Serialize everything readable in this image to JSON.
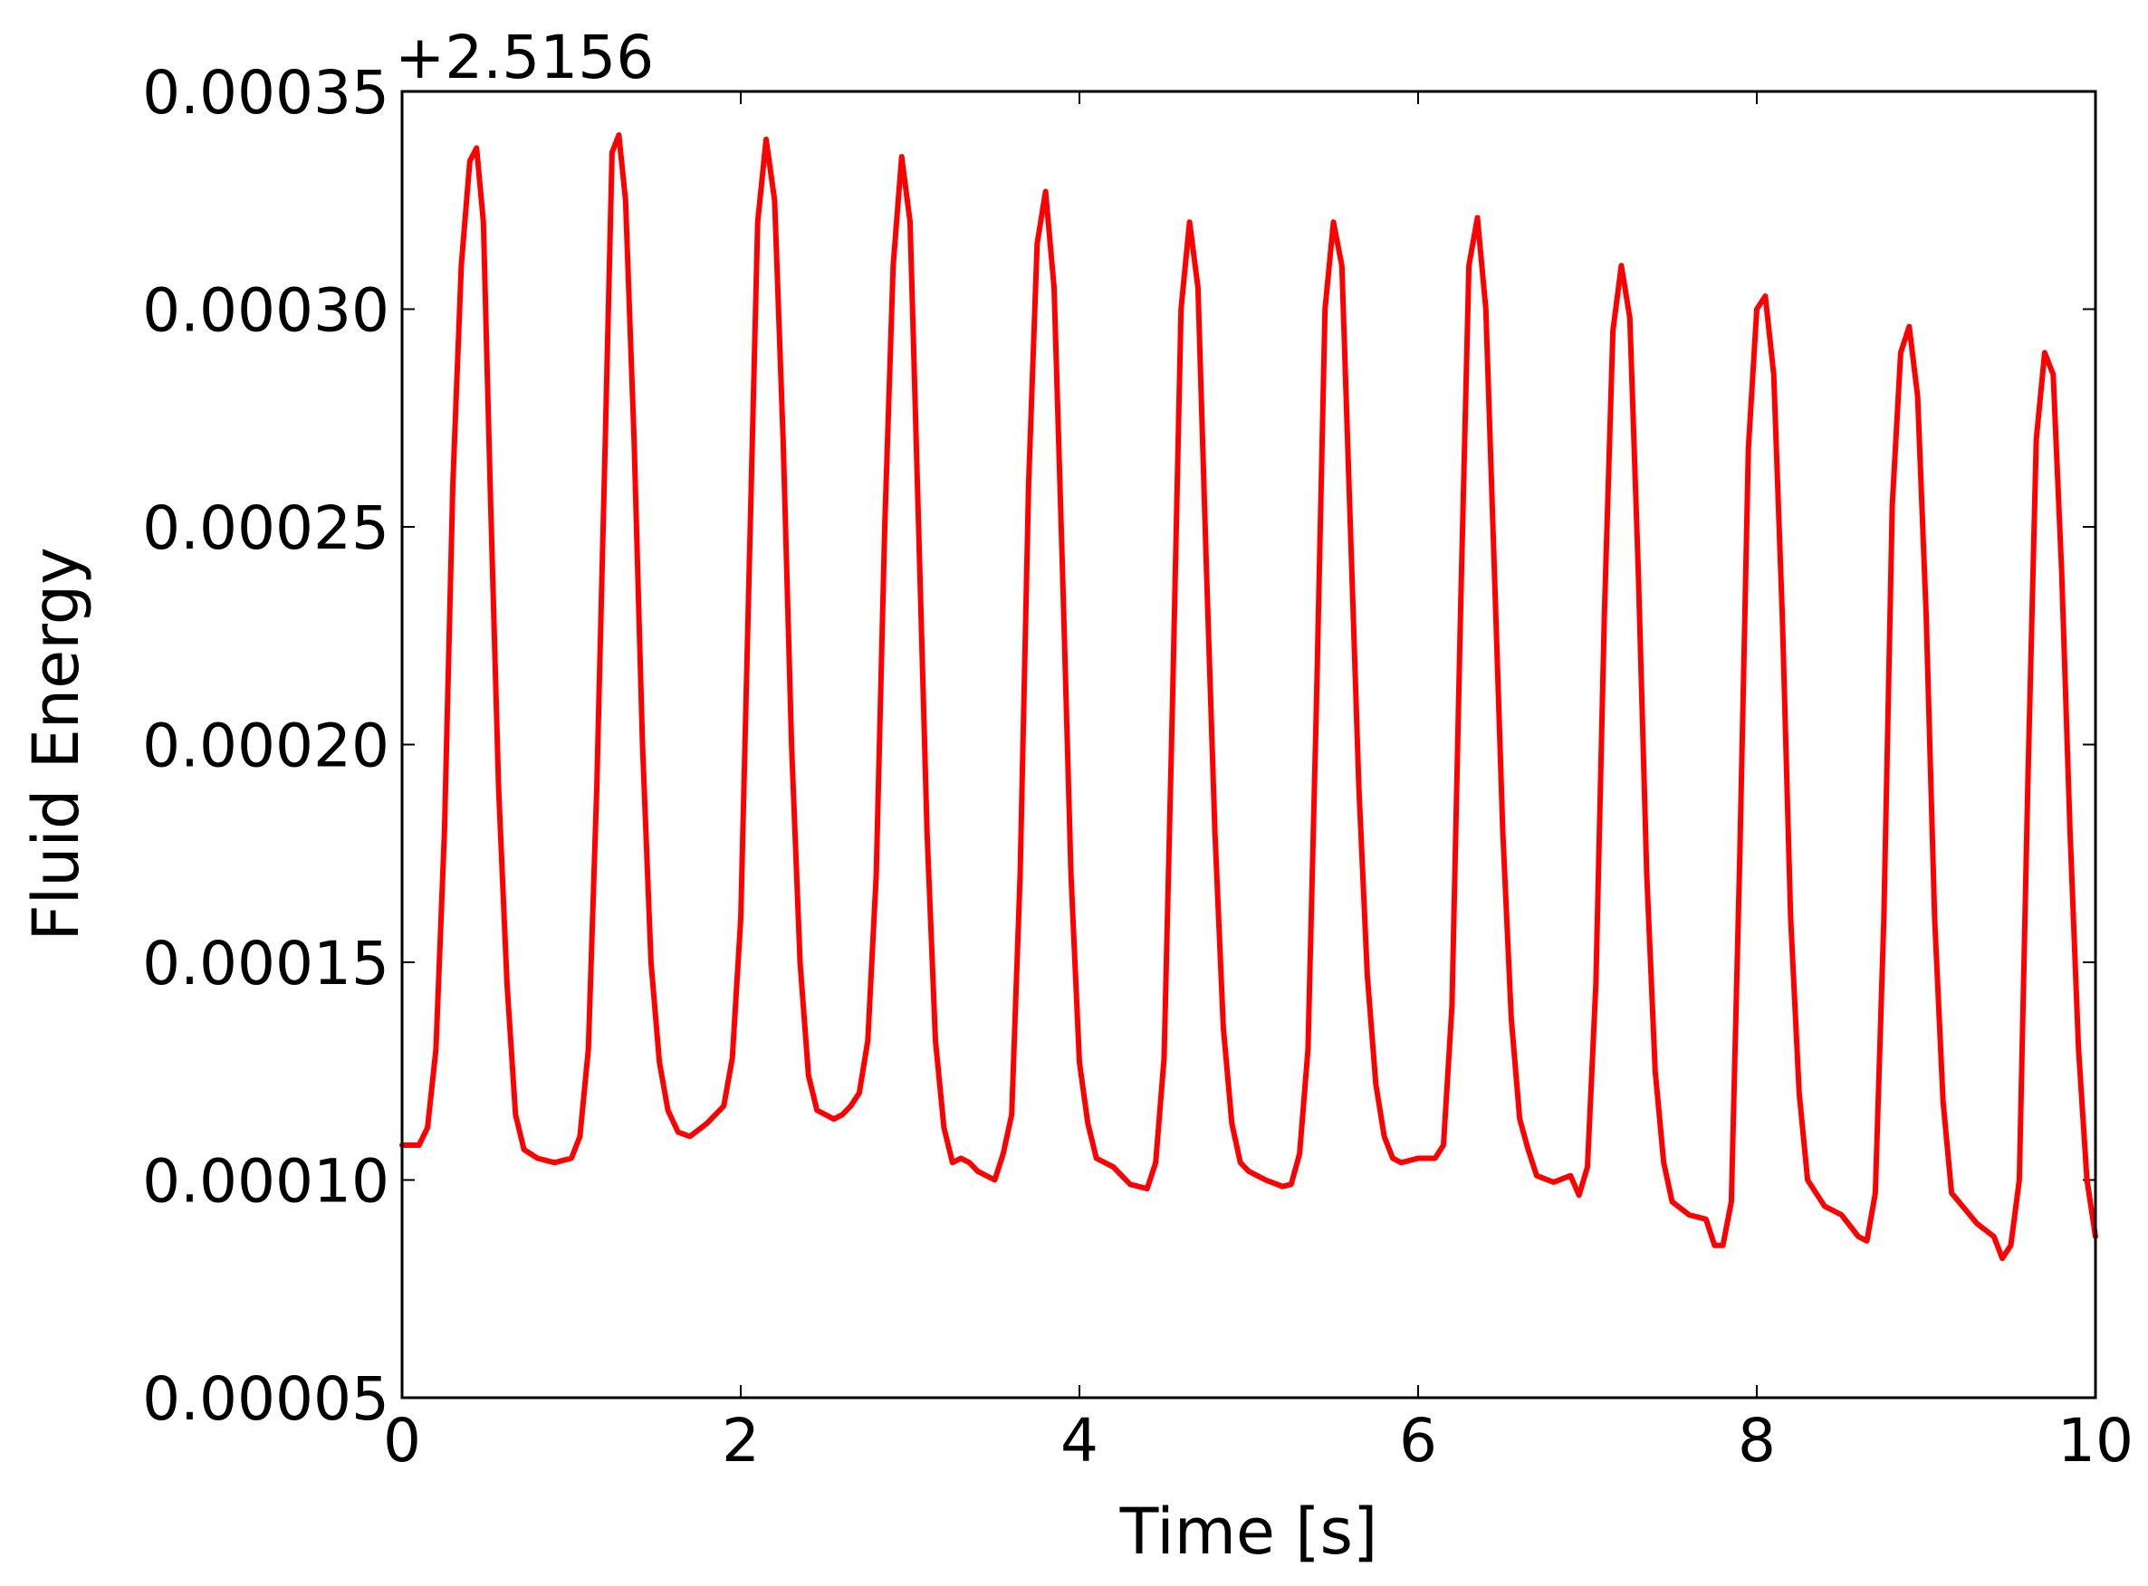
{
  "chart_data": {
    "type": "line",
    "title": "",
    "xlabel": "Time [s]",
    "ylabel": "Fluid Energy",
    "offset_text": "+2.5156",
    "xlim": [
      0,
      10
    ],
    "ylim": [
      5e-05,
      0.00035
    ],
    "xticks": [
      0,
      2,
      4,
      6,
      8,
      10
    ],
    "xtick_labels": [
      "0",
      "2",
      "4",
      "6",
      "8",
      "10"
    ],
    "yticks": [
      5e-05,
      0.0001,
      0.00015,
      0.0002,
      0.00025,
      0.0003,
      0.00035
    ],
    "ytick_labels": [
      "0.00005",
      "0.00010",
      "0.00015",
      "0.00020",
      "0.00025",
      "0.00030",
      "0.00035"
    ],
    "grid": false,
    "legend": "none",
    "series": [
      {
        "color": "#ff0000",
        "x": [
          0,
          0.1,
          0.15,
          0.2,
          0.25,
          0.3,
          0.35,
          0.4,
          0.44,
          0.48,
          0.52,
          0.57,
          0.62,
          0.67,
          0.72,
          0.8,
          0.9,
          1.0,
          1.05,
          1.1,
          1.15,
          1.2,
          1.24,
          1.28,
          1.32,
          1.37,
          1.42,
          1.47,
          1.52,
          1.57,
          1.63,
          1.7,
          1.8,
          1.9,
          1.95,
          2.0,
          2.05,
          2.1,
          2.15,
          2.2,
          2.25,
          2.3,
          2.35,
          2.4,
          2.45,
          2.55,
          2.6,
          2.65,
          2.7,
          2.75,
          2.8,
          2.85,
          2.9,
          2.95,
          3.0,
          3.05,
          3.1,
          3.15,
          3.2,
          3.25,
          3.3,
          3.35,
          3.4,
          3.5,
          3.55,
          3.6,
          3.65,
          3.7,
          3.75,
          3.8,
          3.85,
          3.9,
          3.95,
          4.0,
          4.05,
          4.1,
          4.2,
          4.3,
          4.4,
          4.45,
          4.5,
          4.55,
          4.6,
          4.65,
          4.7,
          4.75,
          4.8,
          4.85,
          4.9,
          4.95,
          5.0,
          5.1,
          5.2,
          5.25,
          5.3,
          5.35,
          5.4,
          5.45,
          5.5,
          5.55,
          5.6,
          5.65,
          5.7,
          5.75,
          5.8,
          5.85,
          5.9,
          6.0,
          6.1,
          6.15,
          6.2,
          6.25,
          6.3,
          6.35,
          6.4,
          6.45,
          6.5,
          6.55,
          6.6,
          6.65,
          6.7,
          6.8,
          6.9,
          6.95,
          7.0,
          7.05,
          7.1,
          7.15,
          7.2,
          7.25,
          7.3,
          7.35,
          7.4,
          7.45,
          7.5,
          7.6,
          7.7,
          7.75,
          7.8,
          7.85,
          7.9,
          7.95,
          8.0,
          8.05,
          8.1,
          8.15,
          8.2,
          8.25,
          8.3,
          8.4,
          8.5,
          8.6,
          8.65,
          8.7,
          8.75,
          8.8,
          8.85,
          8.9,
          8.95,
          9.0,
          9.05,
          9.1,
          9.15,
          9.3,
          9.4,
          9.45,
          9.5,
          9.55,
          9.6,
          9.65,
          9.7,
          9.75,
          9.8,
          9.85,
          9.9,
          9.95,
          10.0
        ],
        "y": [
          0.000108,
          0.000108,
          0.000112,
          0.00013,
          0.00018,
          0.00026,
          0.00031,
          0.000334,
          0.000337,
          0.00032,
          0.00026,
          0.00019,
          0.000145,
          0.000115,
          0.000107,
          0.000105,
          0.000104,
          0.000105,
          0.00011,
          0.00013,
          0.00019,
          0.00027,
          0.000336,
          0.00034,
          0.000325,
          0.00027,
          0.0002,
          0.00015,
          0.000127,
          0.000116,
          0.000111,
          0.00011,
          0.000113,
          0.000117,
          0.000128,
          0.00016,
          0.00024,
          0.00032,
          0.000339,
          0.000325,
          0.00027,
          0.0002,
          0.00015,
          0.000124,
          0.000116,
          0.000114,
          0.000115,
          0.000117,
          0.00012,
          0.000132,
          0.00017,
          0.00025,
          0.00031,
          0.000335,
          0.00032,
          0.00025,
          0.00018,
          0.000132,
          0.000112,
          0.000104,
          0.000105,
          0.000104,
          0.000102,
          0.0001,
          0.000106,
          0.000115,
          0.00017,
          0.00026,
          0.000315,
          0.000327,
          0.000305,
          0.00024,
          0.00017,
          0.000127,
          0.000113,
          0.000105,
          0.000103,
          9.9e-05,
          9.8e-05,
          0.000104,
          0.000128,
          0.00021,
          0.0003,
          0.00032,
          0.000305,
          0.00024,
          0.00018,
          0.000135,
          0.000113,
          0.000104,
          0.000102,
          0.0001,
          9.85e-05,
          9.9e-05,
          0.000106,
          0.00013,
          0.00021,
          0.0003,
          0.00032,
          0.00031,
          0.00025,
          0.00019,
          0.000147,
          0.000122,
          0.00011,
          0.000105,
          0.000104,
          0.000105,
          0.000105,
          0.000108,
          0.00014,
          0.00023,
          0.00031,
          0.000321,
          0.0003,
          0.00024,
          0.00018,
          0.000137,
          0.000114,
          0.000107,
          0.000101,
          9.95e-05,
          0.000101,
          9.65e-05,
          0.000103,
          0.000145,
          0.00023,
          0.000295,
          0.00031,
          0.000298,
          0.00024,
          0.00017,
          0.000125,
          0.000104,
          9.5e-05,
          9.2e-05,
          9.1e-05,
          8.5e-05,
          8.5e-05,
          9.5e-05,
          0.000175,
          0.000268,
          0.0003,
          0.000303,
          0.000285,
          0.00023,
          0.00016,
          0.00012,
          0.0001,
          9.4e-05,
          9.2e-05,
          8.7e-05,
          8.6e-05,
          9.7e-05,
          0.00016,
          0.000255,
          0.00029,
          0.000296,
          0.00028,
          0.00023,
          0.00016,
          0.000118,
          9.7e-05,
          9e-05,
          8.7e-05,
          8.2e-05,
          8.5e-05,
          0.0001,
          0.00019,
          0.00027,
          0.00029,
          0.000285,
          0.00024,
          0.00018,
          0.00013,
          0.0001,
          8.7e-05
        ]
      }
    ]
  }
}
